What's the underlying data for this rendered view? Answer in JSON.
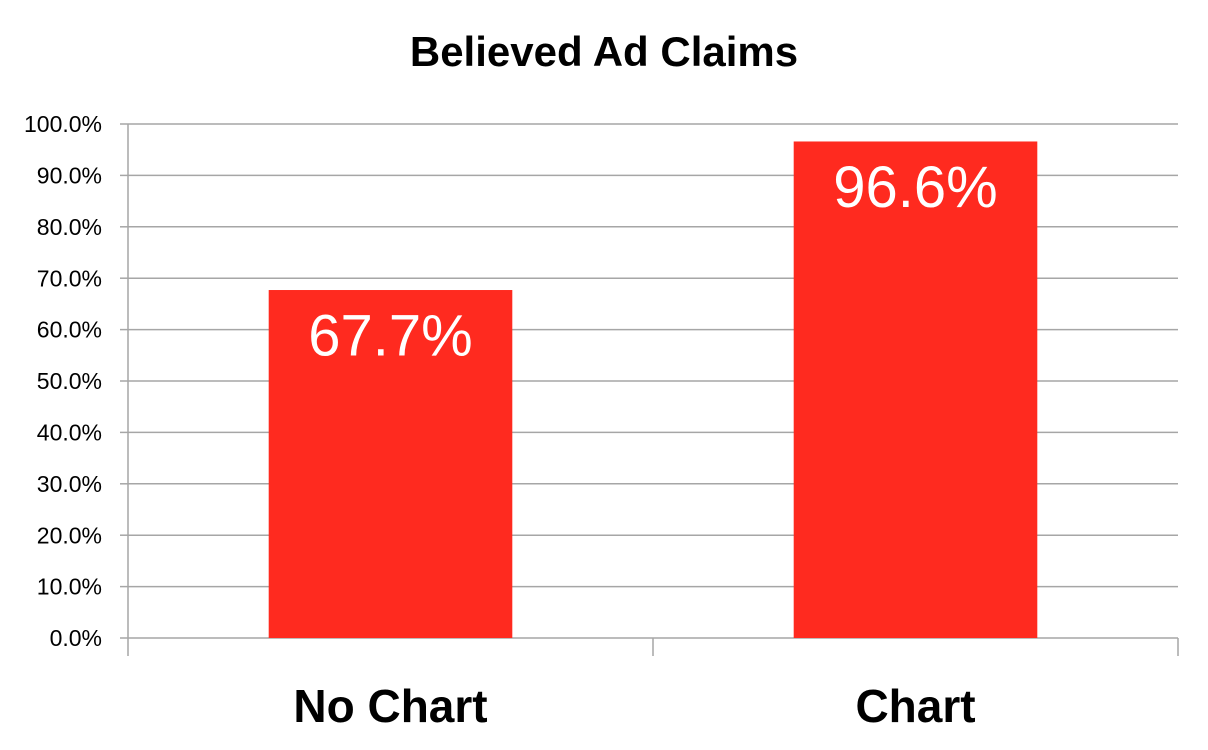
{
  "chart_data": {
    "type": "bar",
    "title": "Believed Ad Claims",
    "categories": [
      "No Chart",
      "Chart"
    ],
    "values": [
      67.7,
      96.6
    ],
    "value_labels": [
      "67.7%",
      "96.6%"
    ],
    "color": "#ff2a1f",
    "ylim": [
      0,
      100
    ],
    "yticks": [
      {
        "value": 0,
        "label": "0.0%"
      },
      {
        "value": 10,
        "label": "10.0%"
      },
      {
        "value": 20,
        "label": "20.0%"
      },
      {
        "value": 30,
        "label": "30.0%"
      },
      {
        "value": 40,
        "label": "40.0%"
      },
      {
        "value": 50,
        "label": "50.0%"
      },
      {
        "value": 60,
        "label": "60.0%"
      },
      {
        "value": 70,
        "label": "70.0%"
      },
      {
        "value": 80,
        "label": "80.0%"
      },
      {
        "value": 90,
        "label": "90.0%"
      },
      {
        "value": 100,
        "label": "100.0%"
      }
    ],
    "grid": true
  }
}
